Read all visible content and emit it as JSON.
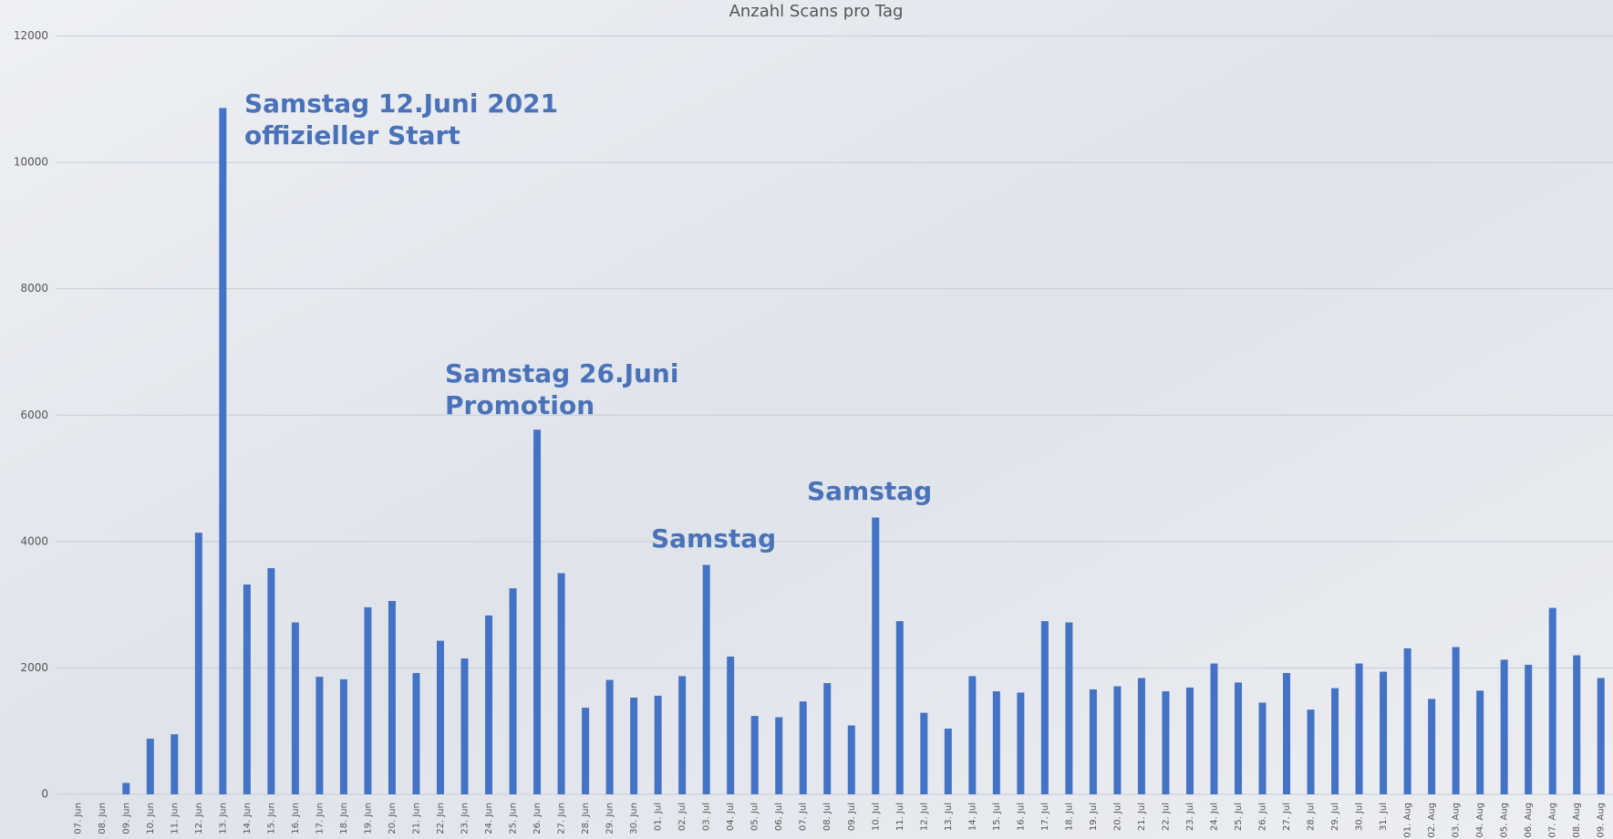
{
  "chart_data": {
    "type": "bar",
    "title": "Anzahl Scans pro Tag",
    "categories": [
      "07. Jun",
      "08. Jun",
      "09. Jun",
      "10. Jun",
      "11. Jun",
      "12. Jun",
      "13. Jun",
      "14. Jun",
      "15. Jun",
      "16. Jun",
      "17. Jun",
      "18. Jun",
      "19. Jun",
      "20. Jun",
      "21. Jun",
      "22. Jun",
      "23. Jun",
      "24. Jun",
      "25. Jun",
      "26. Jun",
      "27. Jun",
      "28. Jun",
      "29. Jun",
      "30. Jun",
      "01. Jul",
      "02. Jul",
      "03. Jul",
      "04. Jul",
      "05. Jul",
      "06. Jul",
      "07. Jul",
      "08. Jul",
      "09. Jul",
      "10. Jul",
      "11. Jul",
      "12. Jul",
      "13. Jul",
      "14. Jul",
      "15. Jul",
      "16. Jul",
      "17. Jul",
      "18. Jul",
      "19. Jul",
      "20. Jul",
      "21. Jul",
      "22. Jul",
      "23. Jul",
      "24. Jul",
      "25. Jul",
      "26. Jul",
      "27. Jul",
      "28. Jul",
      "29. Jul",
      "30. Jul",
      "31. Jul",
      "01. Aug",
      "02. Aug",
      "03. Aug",
      "04. Aug",
      "05. Aug",
      "06. Aug",
      "07. Aug",
      "08. Aug",
      "09. Aug"
    ],
    "values": [
      0,
      0,
      180,
      880,
      950,
      4140,
      10860,
      3320,
      3580,
      2720,
      1860,
      1820,
      2960,
      3060,
      1920,
      2430,
      2150,
      2830,
      3260,
      5770,
      3500,
      1370,
      1810,
      1530,
      1560,
      1870,
      3630,
      2180,
      1240,
      1220,
      1470,
      1760,
      1090,
      4380,
      2740,
      1290,
      1040,
      1870,
      1630,
      1610,
      2740,
      2720,
      1660,
      1710,
      1840,
      1630,
      1690,
      2070,
      1770,
      1450,
      1920,
      1340,
      1680,
      2070,
      1940,
      2310,
      1510,
      2330,
      1640,
      2130,
      2050,
      2950,
      2200,
      1840
    ],
    "color": "#4472c4",
    "ylim": [
      0,
      12000
    ],
    "yticks": [
      0,
      2000,
      4000,
      6000,
      8000,
      10000,
      12000
    ],
    "grid": true,
    "annotations": [
      {
        "lines": [
          "Samstag 12.Juni 2021",
          "offizieller Start"
        ]
      },
      {
        "lines": [
          "Samstag 26.Juni",
          "Promotion"
        ]
      },
      {
        "lines": [
          "Samstag"
        ]
      },
      {
        "lines": [
          "Samstag"
        ]
      }
    ]
  }
}
